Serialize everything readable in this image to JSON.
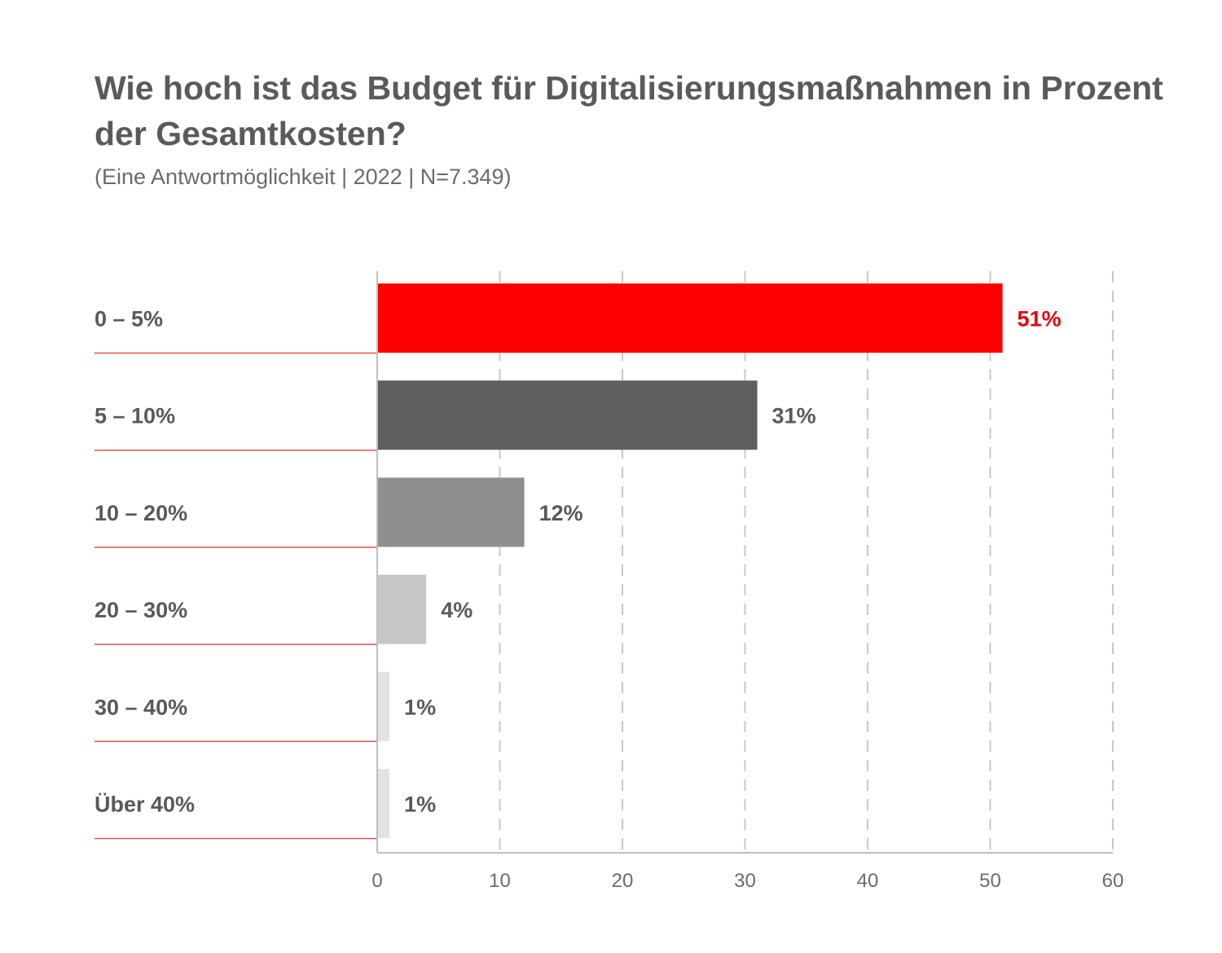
{
  "chart_data": {
    "type": "bar",
    "orientation": "horizontal",
    "title": "Wie hoch ist das Budget für Digitalisierungsmaßnahmen in Prozent der Gesamtkosten?",
    "subtitle": "(Eine Antwortmöglichkeit | 2022 | N=7.349)",
    "categories": [
      "0 – 5%",
      "5 – 10%",
      "10 – 20%",
      "20 – 30%",
      "30 – 40%",
      "Über 40%"
    ],
    "values": [
      51,
      31,
      12,
      4,
      1,
      1
    ],
    "value_labels": [
      "51%",
      "31%",
      "12%",
      "4%",
      "1%",
      "1%"
    ],
    "bar_colors": [
      "#ff0000",
      "#5f5f5f",
      "#8f8f8f",
      "#c6c6c6",
      "#e3e3e3",
      "#e3e3e3"
    ],
    "value_label_colors": [
      "#e8000b",
      "#595959",
      "#595959",
      "#595959",
      "#595959",
      "#595959"
    ],
    "xlim": [
      0,
      60
    ],
    "xticks": [
      0,
      10,
      20,
      30,
      40,
      50,
      60
    ],
    "grid": true,
    "grid_color": "#c8c8c8",
    "separator_color": "#e05050",
    "axis_color": "#bfbfbf"
  }
}
